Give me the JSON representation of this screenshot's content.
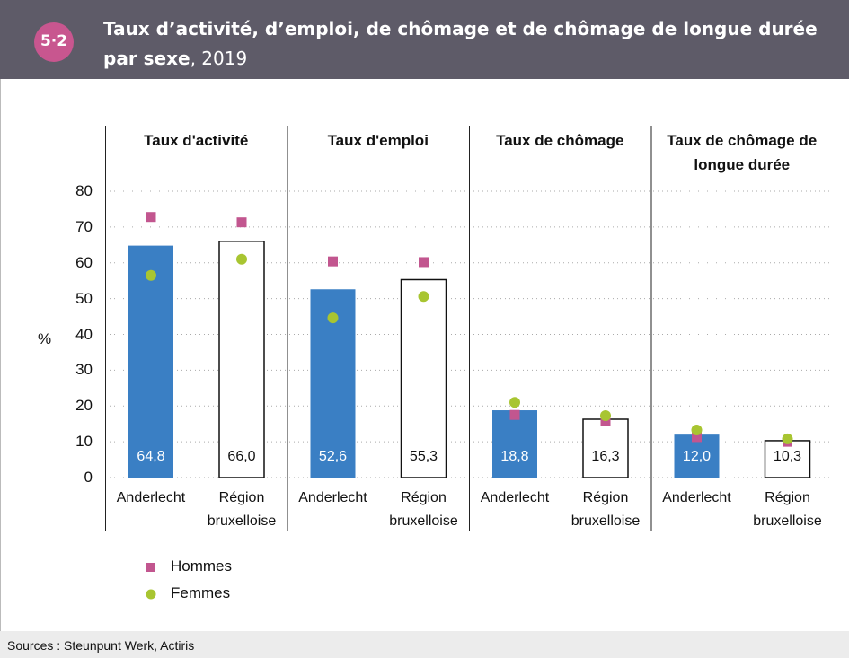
{
  "chart_data": {
    "type": "bar",
    "badge": "5·2",
    "title": "Taux d’activité, d’emploi, de chômage et de chômage de longue durée par sexe",
    "title_suffix": ", 2019",
    "ylabel": "%",
    "ylim": [
      0,
      80
    ],
    "yticks": [
      0,
      10,
      20,
      30,
      40,
      50,
      60,
      70,
      80
    ],
    "grid": true,
    "groups": [
      "Taux d'activité",
      "Taux d'emploi",
      "Taux de chômage",
      "Taux de chômage de longue durée"
    ],
    "categories": [
      "Anderlecht",
      "Région bruxelloise",
      "Anderlecht",
      "Région bruxelloise",
      "Anderlecht",
      "Région bruxelloise",
      "Anderlecht",
      "Région bruxelloise"
    ],
    "values": [
      64.8,
      66.0,
      52.6,
      55.3,
      18.8,
      16.3,
      12.0,
      10.3
    ],
    "value_labels": [
      "64,8",
      "66,0",
      "52,6",
      "55,3",
      "18,8",
      "16,3",
      "12,0",
      "10,3"
    ],
    "colors": [
      "#3a7fc4",
      "#ffffff",
      "#3a7fc4",
      "#ffffff",
      "#3a7fc4",
      "#ffffff",
      "#3a7fc4",
      "#ffffff"
    ],
    "series": [
      {
        "name": "Hommes",
        "color": "#c2568f",
        "marker": "square",
        "values": [
          72.8,
          71.3,
          60.4,
          60.2,
          17.5,
          15.8,
          11.3,
          10.0
        ]
      },
      {
        "name": "Femmes",
        "color": "#a8c531",
        "marker": "circle",
        "values": [
          56.5,
          61.0,
          44.6,
          50.6,
          21.0,
          17.3,
          13.3,
          10.8
        ]
      }
    ],
    "source": "Sources : Steunpunt Werk, Actiris"
  }
}
